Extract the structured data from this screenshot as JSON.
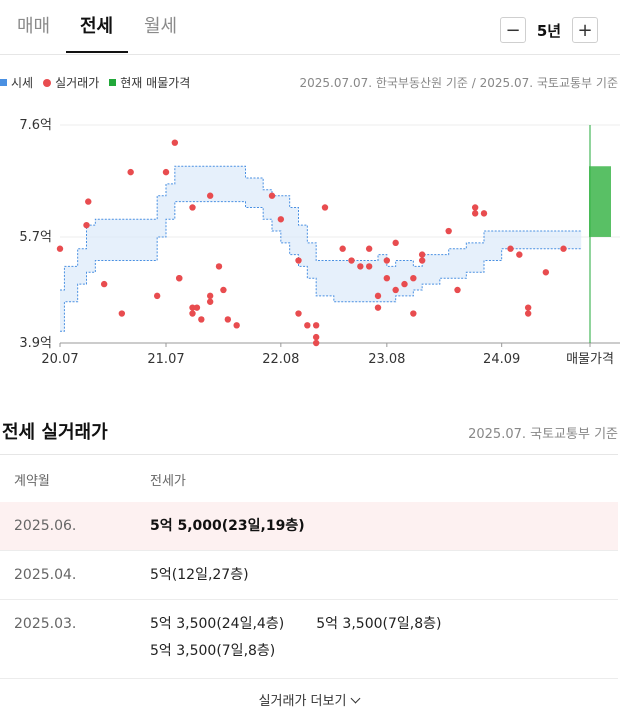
{
  "tabs": [
    {
      "label": "매매",
      "active": false
    },
    {
      "label": "전세",
      "active": true
    },
    {
      "label": "월세",
      "active": false
    }
  ],
  "period": {
    "minus": "−",
    "label": "5년",
    "plus": "+"
  },
  "legend": [
    {
      "label": "시세",
      "color": "#4a90e2",
      "shape": "square"
    },
    {
      "label": "실거래가",
      "color": "#e84c4f",
      "shape": "dot"
    },
    {
      "label": "현재 매물가격",
      "color": "#22a83a",
      "shape": "square"
    }
  ],
  "source_top": "2025.07.07. 한국부동산원 기준 / 2025.07. 국토교통부 기준",
  "chart_data": {
    "type": "line",
    "unit": "억",
    "ylim": [
      3.9,
      7.6
    ],
    "y_ticks": [
      "7.6억",
      "5.7억",
      "3.9억"
    ],
    "y_tick_values": [
      7.6,
      5.7,
      3.9
    ],
    "x_ticks": [
      "20.07",
      "21.07",
      "22.08",
      "23.08",
      "24.09",
      "매물가격"
    ],
    "x_tick_values": [
      0,
      12,
      25,
      37,
      50,
      60
    ],
    "series": [
      {
        "name": "시세",
        "kind": "band",
        "x": [
          0,
          0.5,
          2,
          3,
          4,
          8,
          11,
          12,
          13,
          14,
          15,
          16,
          18,
          21,
          23,
          24,
          25,
          26,
          27,
          28,
          29,
          31,
          35,
          36,
          37,
          38,
          40,
          41,
          43,
          44,
          46,
          48,
          50,
          52,
          58,
          59
        ],
        "upper": [
          4.8,
          5.2,
          5.5,
          5.9,
          6.0,
          6.0,
          6.4,
          6.6,
          6.9,
          6.9,
          6.9,
          6.9,
          6.9,
          6.7,
          6.5,
          6.4,
          6.4,
          6.2,
          5.9,
          5.6,
          5.3,
          5.3,
          5.3,
          5.4,
          5.2,
          5.3,
          5.2,
          5.4,
          5.4,
          5.5,
          5.6,
          5.8,
          5.8,
          5.8,
          5.8,
          5.8
        ],
        "lower": [
          4.1,
          4.6,
          4.9,
          5.1,
          5.3,
          5.3,
          5.7,
          6.0,
          6.3,
          6.3,
          6.3,
          6.3,
          6.3,
          6.2,
          6.0,
          5.8,
          5.6,
          5.4,
          5.2,
          5.0,
          4.7,
          4.6,
          4.6,
          4.6,
          4.6,
          4.7,
          4.8,
          4.9,
          5.0,
          5.0,
          5.1,
          5.3,
          5.5,
          5.5,
          5.5,
          5.5
        ]
      },
      {
        "name": "실거래가",
        "kind": "scatter",
        "points": [
          [
            0,
            5.5
          ],
          [
            3,
            5.9
          ],
          [
            3.2,
            6.3
          ],
          [
            5,
            4.9
          ],
          [
            7,
            4.4
          ],
          [
            8,
            6.8
          ],
          [
            11,
            4.7
          ],
          [
            12,
            6.8
          ],
          [
            13,
            7.3
          ],
          [
            13.5,
            5.0
          ],
          [
            13.5,
            5.0
          ],
          [
            15,
            6.2
          ],
          [
            15,
            4.5
          ],
          [
            15,
            4.4
          ],
          [
            15.5,
            4.5
          ],
          [
            16,
            4.3
          ],
          [
            17,
            6.4
          ],
          [
            17,
            4.7
          ],
          [
            17,
            4.6
          ],
          [
            18,
            5.2
          ],
          [
            18.5,
            4.8
          ],
          [
            19,
            4.3
          ],
          [
            20,
            4.2
          ],
          [
            24,
            6.4
          ],
          [
            25,
            6.0
          ],
          [
            27,
            4.4
          ],
          [
            27,
            5.3
          ],
          [
            28,
            4.2
          ],
          [
            29,
            4.0
          ],
          [
            29,
            4.2
          ],
          [
            29,
            3.9
          ],
          [
            30,
            6.2
          ],
          [
            32,
            5.5
          ],
          [
            33,
            5.3
          ],
          [
            34,
            5.2
          ],
          [
            35,
            5.5
          ],
          [
            35,
            5.2
          ],
          [
            36,
            4.7
          ],
          [
            36,
            4.5
          ],
          [
            37,
            5.3
          ],
          [
            37,
            5.0
          ],
          [
            38,
            5.6
          ],
          [
            38,
            4.8
          ],
          [
            39,
            4.9
          ],
          [
            40,
            5.0
          ],
          [
            40,
            4.4
          ],
          [
            41,
            5.3
          ],
          [
            41,
            5.4
          ],
          [
            44,
            5.8
          ],
          [
            45,
            4.8
          ],
          [
            47,
            6.2
          ],
          [
            47,
            6.1
          ],
          [
            48,
            6.1
          ],
          [
            51,
            5.5
          ],
          [
            52,
            5.4
          ],
          [
            53,
            4.5
          ],
          [
            53,
            4.4
          ],
          [
            55,
            5.1
          ],
          [
            57,
            5.5
          ]
        ]
      },
      {
        "name": "현재 매물가격",
        "kind": "range",
        "x": 60,
        "low": 5.7,
        "high": 6.9
      }
    ]
  },
  "table": {
    "title": "전세 실거래가",
    "source": "2025.07. 국토교통부 기준",
    "headers": [
      "계약월",
      "전세가"
    ],
    "rows": [
      {
        "month": "2025.06.",
        "prices": [
          "5억 5,000(23일,19층)"
        ],
        "highlight": true
      },
      {
        "month": "2025.04.",
        "prices": [
          "5억(12일,27층)"
        ],
        "highlight": false
      },
      {
        "month": "2025.03.",
        "prices": [
          "5억 3,500(24일,4층)",
          "5억 3,500(7일,8층)",
          "5억 3,500(7일,8층)"
        ],
        "highlight": false
      }
    ],
    "more_label": "실거래가 더보기"
  }
}
